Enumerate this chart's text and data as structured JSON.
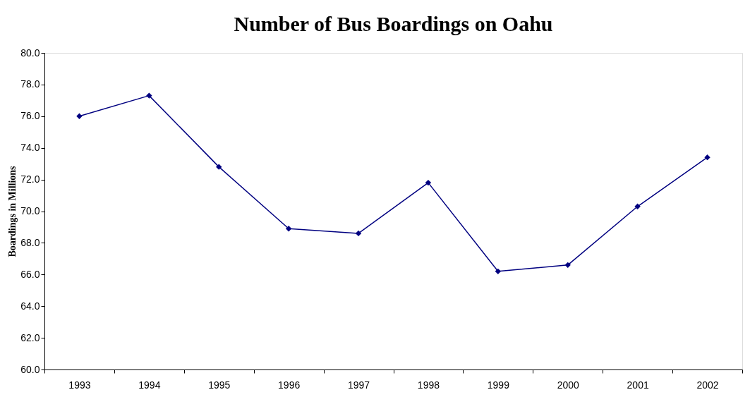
{
  "chart_data": {
    "type": "line",
    "title": "Number of Bus Boardings on Oahu",
    "ylabel": "Boardings in Millions",
    "categories": [
      "1993",
      "1994",
      "1995",
      "1996",
      "1997",
      "1998",
      "1999",
      "2000",
      "2001",
      "2002"
    ],
    "series": [
      {
        "color": "#000080",
        "values": [
          76.0,
          77.3,
          72.8,
          68.9,
          68.6,
          71.8,
          66.2,
          66.6,
          70.3,
          73.4
        ]
      }
    ],
    "ylim": [
      60,
      80
    ],
    "yticks": [
      {
        "value": 60,
        "label": "60.0"
      },
      {
        "value": 62,
        "label": "62.0"
      },
      {
        "value": 64,
        "label": "64.0"
      },
      {
        "value": 66,
        "label": "66.0"
      },
      {
        "value": 68,
        "label": "68.0"
      },
      {
        "value": 70,
        "label": "70.0"
      },
      {
        "value": 72,
        "label": "72.0"
      },
      {
        "value": 74,
        "label": "74.0"
      },
      {
        "value": 76,
        "label": "76.0"
      },
      {
        "value": 78,
        "label": "78.0"
      },
      {
        "value": 80,
        "label": "80.0"
      }
    ],
    "grid": false,
    "marker": "diamond",
    "line_style": "solid"
  }
}
